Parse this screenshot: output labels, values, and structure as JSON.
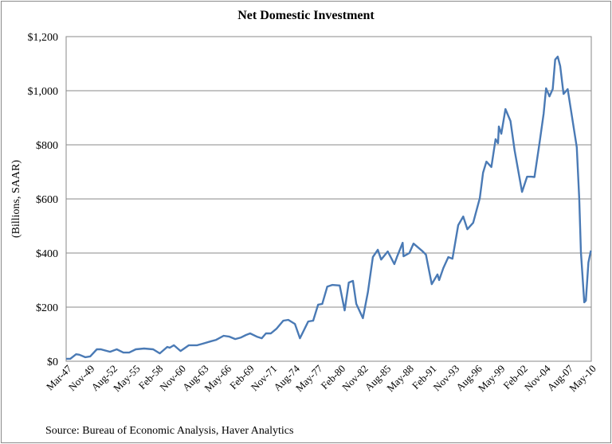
{
  "chart_data": {
    "type": "line",
    "title": "Net Domestic Investment",
    "xlabel": "",
    "ylabel": "(Billions, SAAR)",
    "source": "Source: Bureau of Economic Analysis, Haver Analytics",
    "ylim": [
      0,
      1200
    ],
    "yticks": [
      "$0",
      "$200",
      "$400",
      "$600",
      "$800",
      "$1,000",
      "$1,200"
    ],
    "ytick_values": [
      0,
      200,
      400,
      600,
      800,
      1000,
      1200
    ],
    "xlim": [
      1947.0,
      2010.35
    ],
    "xticks": [
      "Mar-47",
      "Nov-49",
      "Aug-52",
      "May-55",
      "Feb-58",
      "Nov-60",
      "Aug-63",
      "May-66",
      "Feb-69",
      "Nov-71",
      "Aug-74",
      "May-77",
      "Feb-80",
      "Nov-82",
      "Aug-85",
      "May-88",
      "Feb-91",
      "Nov-93",
      "Aug-96",
      "May-99",
      "Feb-02",
      "Nov-04",
      "Aug-07",
      "May-10"
    ],
    "grid": "horizontal",
    "line_color": "#4a7ab5",
    "series": [
      {
        "name": "Net Domestic Investment",
        "x": [
          1947.0,
          1947.5,
          1948.2,
          1948.6,
          1949.3,
          1949.9,
          1950.7,
          1951.2,
          1952.3,
          1953.1,
          1953.9,
          1954.6,
          1955.4,
          1956.4,
          1957.5,
          1958.3,
          1959.2,
          1959.5,
          1960.0,
          1960.8,
          1961.8,
          1962.8,
          1963.5,
          1964.5,
          1965.1,
          1966.0,
          1966.7,
          1967.4,
          1968.1,
          1968.7,
          1969.2,
          1970.0,
          1970.6,
          1971.1,
          1971.7,
          1972.4,
          1973.2,
          1973.8,
          1974.6,
          1975.2,
          1976.2,
          1976.8,
          1977.4,
          1977.9,
          1978.5,
          1979.1,
          1980.0,
          1980.6,
          1981.1,
          1981.6,
          1982.0,
          1982.8,
          1983.4,
          1984.0,
          1984.6,
          1985.0,
          1985.8,
          1986.6,
          1986.9,
          1987.6,
          1987.7,
          1988.4,
          1988.9,
          1989.9,
          1990.4,
          1991.1,
          1991.8,
          1992.0,
          1992.5,
          1993.1,
          1993.6,
          1994.3,
          1994.9,
          1995.4,
          1996.1,
          1996.9,
          1997.3,
          1997.7,
          1998.3,
          1998.8,
          1999.1,
          1999.2,
          1999.5,
          2000.0,
          2000.6,
          2001.1,
          2002.0,
          2002.6,
          2003.1,
          2003.5,
          2004.1,
          2004.6,
          2004.9,
          2005.3,
          2005.7,
          2006.0,
          2006.3,
          2006.6,
          2007.0,
          2007.5,
          2007.8,
          2008.6,
          2008.9,
          2009.1,
          2009.5,
          2009.7,
          2010.0,
          2010.3
        ],
        "y": [
          9,
          9,
          26,
          24,
          15,
          18,
          44,
          44,
          35,
          44,
          32,
          32,
          44,
          47,
          44,
          29,
          53,
          50,
          59,
          38,
          59,
          59,
          65,
          74,
          79,
          94,
          91,
          82,
          88,
          97,
          103,
          91,
          85,
          103,
          103,
          121,
          150,
          153,
          138,
          85,
          147,
          150,
          209,
          212,
          276,
          282,
          280,
          188,
          291,
          297,
          212,
          159,
          256,
          385,
          412,
          376,
          406,
          359,
          385,
          438,
          388,
          400,
          435,
          409,
          394,
          285,
          321,
          300,
          344,
          385,
          379,
          503,
          535,
          488,
          512,
          603,
          697,
          738,
          718,
          821,
          806,
          868,
          841,
          932,
          888,
          779,
          626,
          682,
          682,
          681,
          806,
          915,
          1009,
          979,
          1006,
          1115,
          1126,
          1091,
          988,
          1006,
          947,
          791,
          600,
          403,
          218,
          224,
          365,
          409
        ]
      }
    ]
  }
}
